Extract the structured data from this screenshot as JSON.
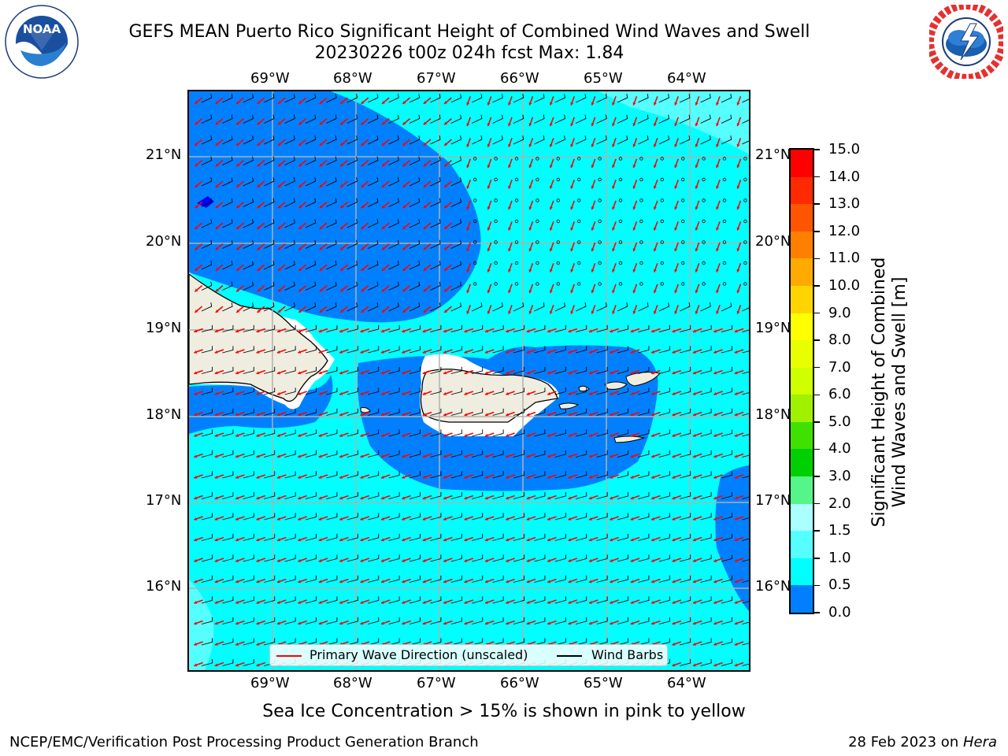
{
  "header": {
    "title_line1": "GEFS MEAN Puerto Rico Significant Height of Combined Wind Waves and Swell",
    "title_line2": "20230226 t00z 024h fcst   Max: 1.84"
  },
  "logos": {
    "noaa": {
      "icon": "noaa-logo",
      "text": "NOAA",
      "ring_text": "NATIONAL OCEANIC AND ATMOSPHERIC ADMINISTRATION · U.S. DEPARTMENT OF COMMERCE"
    },
    "nws": {
      "icon": "nws-logo",
      "ring_text": "NATIONAL WEATHER SERVICE"
    }
  },
  "map": {
    "lon_ticks": [
      "69°W",
      "68°W",
      "67°W",
      "66°W",
      "65°W",
      "64°W"
    ],
    "lat_ticks": [
      "21°N",
      "20°N",
      "19°N",
      "18°N",
      "17°N",
      "16°N"
    ],
    "colors": {
      "ocean_1_0_to_1_5": "#00ffff",
      "ocean_0_5_to_1_0": "#0080ff",
      "ocean_1_5_to_2_0": "#55ffff",
      "ocean_0_0_to_0_5": "#0000ff",
      "land": "#efeddf",
      "gridline": "#b0b0b0",
      "wave_arrow": "#ff0000",
      "wind_barb": "#000000"
    }
  },
  "legend": {
    "wave_label": "Primary Wave Direction (unscaled)",
    "barb_label": "Wind Barbs"
  },
  "colorbar": {
    "label_line1": "Significant Height of Combined",
    "label_line2": "Wind Waves and Swell [m]",
    "ticks": [
      "15.0",
      "14.0",
      "13.0",
      "12.0",
      "11.0",
      "10.0",
      "9.0",
      "8.0",
      "7.0",
      "6.0",
      "5.0",
      "4.0",
      "3.0",
      "2.0",
      "1.5",
      "1.0",
      "0.5",
      "0.0"
    ],
    "colors": [
      "#ff0000",
      "#ff2a00",
      "#ff5500",
      "#ff8000",
      "#ffaa00",
      "#ffd400",
      "#ffff00",
      "#e8ff00",
      "#d0ff00",
      "#a0f000",
      "#40e000",
      "#00d000",
      "#55f58a",
      "#aaffff",
      "#55ffff",
      "#00ffff",
      "#0080ff",
      "#0000ff"
    ]
  },
  "notes": {
    "sea_ice": "Sea Ice Concentration > 15% is shown in pink to yellow"
  },
  "footer": {
    "left": "NCEP/EMC/Verification Post Processing Product Generation Branch",
    "date": "28 Feb 2023 on ",
    "machine": "Hera"
  }
}
